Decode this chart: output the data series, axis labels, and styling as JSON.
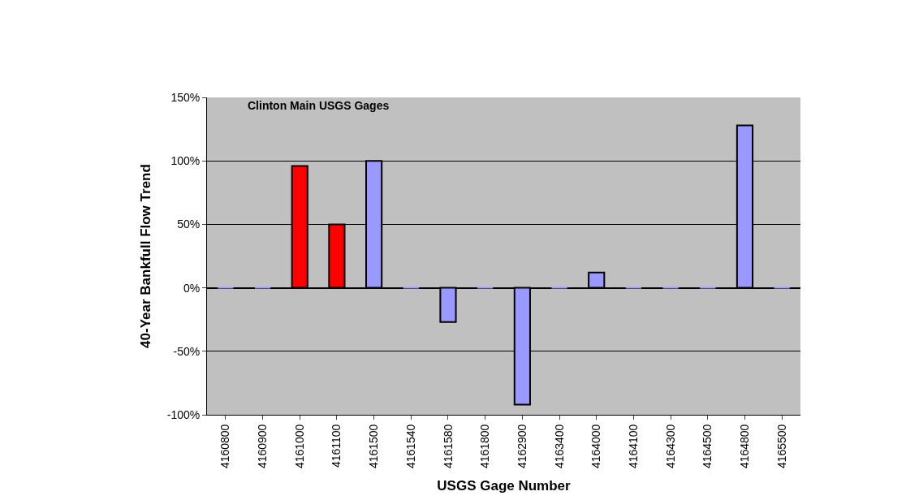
{
  "chart_data": {
    "type": "bar",
    "xlabel": "USGS Gage Number",
    "ylabel": "40-Year Bankfull Flow Trend",
    "categories": [
      "4160800",
      "4160900",
      "4161000",
      "4161100",
      "4161500",
      "4161540",
      "4161580",
      "4161800",
      "4162900",
      "4163400",
      "4164000",
      "4164100",
      "4164300",
      "4164500",
      "4164800",
      "4165500"
    ],
    "values": [
      0,
      0,
      96,
      50,
      100,
      0,
      -27,
      0,
      -92,
      0,
      12,
      0,
      0,
      0,
      128,
      0
    ],
    "colors": [
      "#9999ff",
      "#9999ff",
      "#ff0000",
      "#ff0000",
      "#9999ff",
      "#9999ff",
      "#9999ff",
      "#9999ff",
      "#9999ff",
      "#9999ff",
      "#9999ff",
      "#9999ff",
      "#9999ff",
      "#9999ff",
      "#9999ff",
      "#9999ff"
    ],
    "ylim": [
      -100,
      150
    ],
    "yticks": [
      {
        "value": -100,
        "label": "-100%"
      },
      {
        "value": -50,
        "label": "-50%"
      },
      {
        "value": 0,
        "label": "0%"
      },
      {
        "value": 50,
        "label": "50%"
      },
      {
        "value": 100,
        "label": "100%"
      },
      {
        "value": 150,
        "label": "150%"
      }
    ],
    "annotations": [
      "Clinton Main USGS Gages"
    ],
    "grid": "y"
  }
}
